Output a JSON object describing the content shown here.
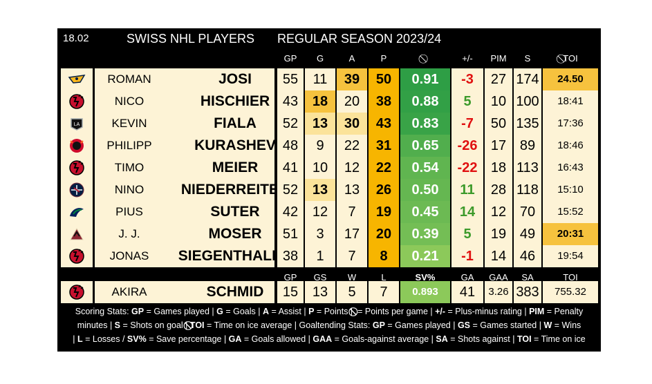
{
  "header": {
    "date": "18.02",
    "title": "SWISS NHL PLAYERS",
    "season": "REGULAR SEASON 2023/24"
  },
  "skater_columns": [
    "GP",
    "G",
    "A",
    "P",
    "⃠",
    "+/-",
    "PIM",
    "S",
    "⃠TOI"
  ],
  "skaters": [
    {
      "team_icon": "predators-logo-icon",
      "first": "ROMAN",
      "last": "JOSI",
      "gp": "55",
      "g": "11",
      "a": "39",
      "p": "50",
      "ppg": "0.91",
      "pm": "-3",
      "pim": "27",
      "s": "174",
      "toi": "24.50"
    },
    {
      "team_icon": "devils-logo-icon",
      "first": "NICO",
      "last": "HISCHIER",
      "gp": "43",
      "g": "18",
      "a": "20",
      "p": "38",
      "ppg": "0.88",
      "pm": "5",
      "pim": "10",
      "s": "100",
      "toi": "18:41"
    },
    {
      "team_icon": "kings-logo-icon",
      "first": "KEVIN",
      "last": "FIALA",
      "gp": "52",
      "g": "13",
      "a": "30",
      "p": "43",
      "ppg": "0.83",
      "pm": "-7",
      "pim": "50",
      "s": "135",
      "toi": "17:36"
    },
    {
      "team_icon": "blackhawks-logo-icon",
      "first": "PHILIPP",
      "last": "KURASHEV",
      "gp": "48",
      "g": "9",
      "a": "22",
      "p": "31",
      "ppg": "0.65",
      "pm": "-26",
      "pim": "17",
      "s": "89",
      "toi": "18:46"
    },
    {
      "team_icon": "devils-logo-icon",
      "first": "TIMO",
      "last": "MEIER",
      "gp": "41",
      "g": "10",
      "a": "12",
      "p": "22",
      "ppg": "0.54",
      "pm": "-22",
      "pim": "18",
      "s": "113",
      "toi": "16:43"
    },
    {
      "team_icon": "jets-logo-icon",
      "first": "NINO",
      "last": "NIEDERREITER",
      "gp": "52",
      "g": "13",
      "a": "13",
      "p": "26",
      "ppg": "0.50",
      "pm": "11",
      "pim": "28",
      "s": "118",
      "toi": "15:10"
    },
    {
      "team_icon": "canucks-logo-icon",
      "first": "PIUS",
      "last": "SUTER",
      "gp": "42",
      "g": "12",
      "a": "7",
      "p": "19",
      "ppg": "0.45",
      "pm": "14",
      "pim": "12",
      "s": "70",
      "toi": "15:52"
    },
    {
      "team_icon": "coyotes-logo-icon",
      "first": "J. J.",
      "last": "MOSER",
      "gp": "51",
      "g": "3",
      "a": "17",
      "p": "20",
      "ppg": "0.39",
      "pm": "5",
      "pim": "19",
      "s": "49",
      "toi": "20:31"
    },
    {
      "team_icon": "devils-logo-icon",
      "first": "JONAS",
      "last": "SIEGENTHALER",
      "gp": "38",
      "g": "1",
      "a": "7",
      "p": "8",
      "ppg": "0.21",
      "pm": "-1",
      "pim": "14",
      "s": "46",
      "toi": "19:54"
    }
  ],
  "goalie_columns": [
    "GP",
    "GS",
    "W",
    "L",
    "SV%",
    "GA",
    "GAA",
    "SA",
    "TOI"
  ],
  "goalie": {
    "team_icon": "devils-logo-icon",
    "first": "AKIRA",
    "last": "SCHMID",
    "gp": "15",
    "gs": "13",
    "w": "5",
    "l": "7",
    "svp": "0.893",
    "ga": "41",
    "gaa": "3.26",
    "sa": "383",
    "toi": "755.32"
  },
  "legend": {
    "line1": [
      {
        "t": "Scoring Stats: "
      },
      {
        "b": "GP"
      },
      {
        "t": " = Games played | "
      },
      {
        "b": "G"
      },
      {
        "t": " = Goals | "
      },
      {
        "b": "A"
      },
      {
        "t": " = Assist  |  "
      },
      {
        "b": "P"
      },
      {
        "t": " = Points  | "
      },
      {
        "b": "⃠"
      },
      {
        "t": " = Points per game  | "
      },
      {
        "b": "+/-"
      },
      {
        "t": "  = Plus-minus rating  | "
      },
      {
        "b": "PIM"
      },
      {
        "t": " = Penalty"
      }
    ],
    "line2": [
      {
        "t": "minutes  | "
      },
      {
        "b": "S"
      },
      {
        "t": " = Shots on goal  |  "
      },
      {
        "b": "⃠TOI"
      },
      {
        "t": " = Time on ice average  |  Goaltending Stats: "
      },
      {
        "b": "GP"
      },
      {
        "t": " = Games played  | "
      },
      {
        "b": "GS"
      },
      {
        "t": " = Games started  | "
      },
      {
        "b": "W"
      },
      {
        "t": " = Wins"
      }
    ],
    "line3": [
      {
        "t": "| "
      },
      {
        "b": "L"
      },
      {
        "t": " = Losses / "
      },
      {
        "b": "SV%"
      },
      {
        "t": " = Save percentage  | "
      },
      {
        "b": "GA"
      },
      {
        "t": " = Goals allowed  | "
      },
      {
        "b": "GAA"
      },
      {
        "t": " = Goals-against average  | "
      },
      {
        "b": "SA"
      },
      {
        "t": " = Shots against  | "
      },
      {
        "b": "TOI"
      },
      {
        "t": " = Time on ice"
      }
    ]
  },
  "colors": {
    "cream": "#fdf3d6",
    "light_gold": "#fbe39a",
    "gold": "#f6c23e",
    "orange": "#f7b500",
    "green_dark": "#2e9e45",
    "green_light": "#8cc95a",
    "positive": "#3c9a2a",
    "negative": "#e01010"
  }
}
